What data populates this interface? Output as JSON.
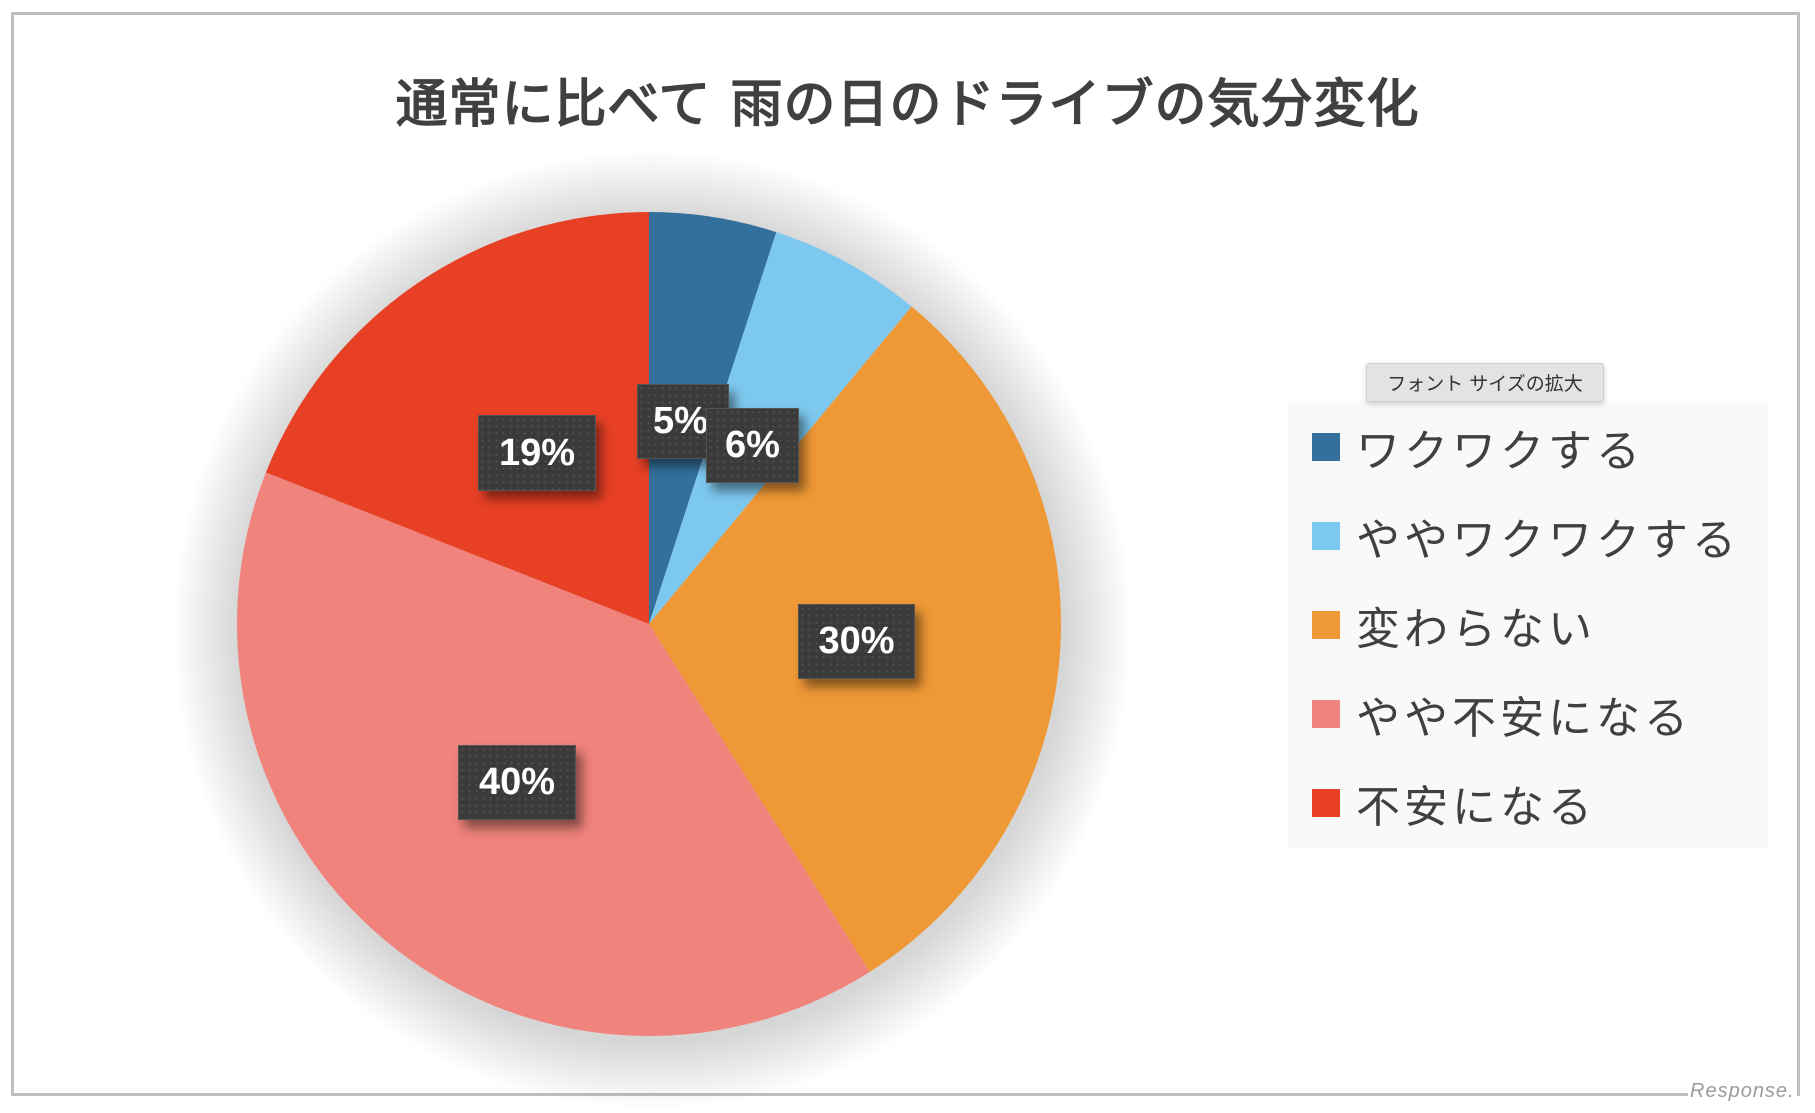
{
  "chart_data": {
    "type": "pie",
    "title": "通常に比べて 雨の日のドライブの気分変化",
    "categories": [
      "ワクワクする",
      "ややワクワクする",
      "変わらない",
      "やや不安になる",
      "不安になる"
    ],
    "values": [
      5,
      6,
      30,
      40,
      19
    ],
    "unit": "%",
    "data_labels": [
      "5%",
      "6%",
      "30%",
      "40%",
      "19%"
    ],
    "colors": [
      "#33719c",
      "#7dc8ef",
      "#ef9836",
      "#f0837b",
      "#e84025"
    ],
    "start_angle": "12 o'clock",
    "direction": "clockwise",
    "legend_position": "right"
  },
  "title": "通常に比べて 雨の日のドライブの気分変化",
  "tooltip": "フォント サイズの拡大",
  "legend": {
    "items": [
      {
        "label": "ワクワクする",
        "color": "#33719c"
      },
      {
        "label": "ややワクワクする",
        "color": "#7dc8ef"
      },
      {
        "label": "変わらない",
        "color": "#ef9836"
      },
      {
        "label": "やや不安になる",
        "color": "#f0837b"
      },
      {
        "label": "不安になる",
        "color": "#e84025"
      }
    ]
  },
  "labels": {
    "l0": "5%",
    "l1": "6%",
    "l2": "30%",
    "l3": "40%",
    "l4": "19%"
  },
  "watermark": "Response."
}
